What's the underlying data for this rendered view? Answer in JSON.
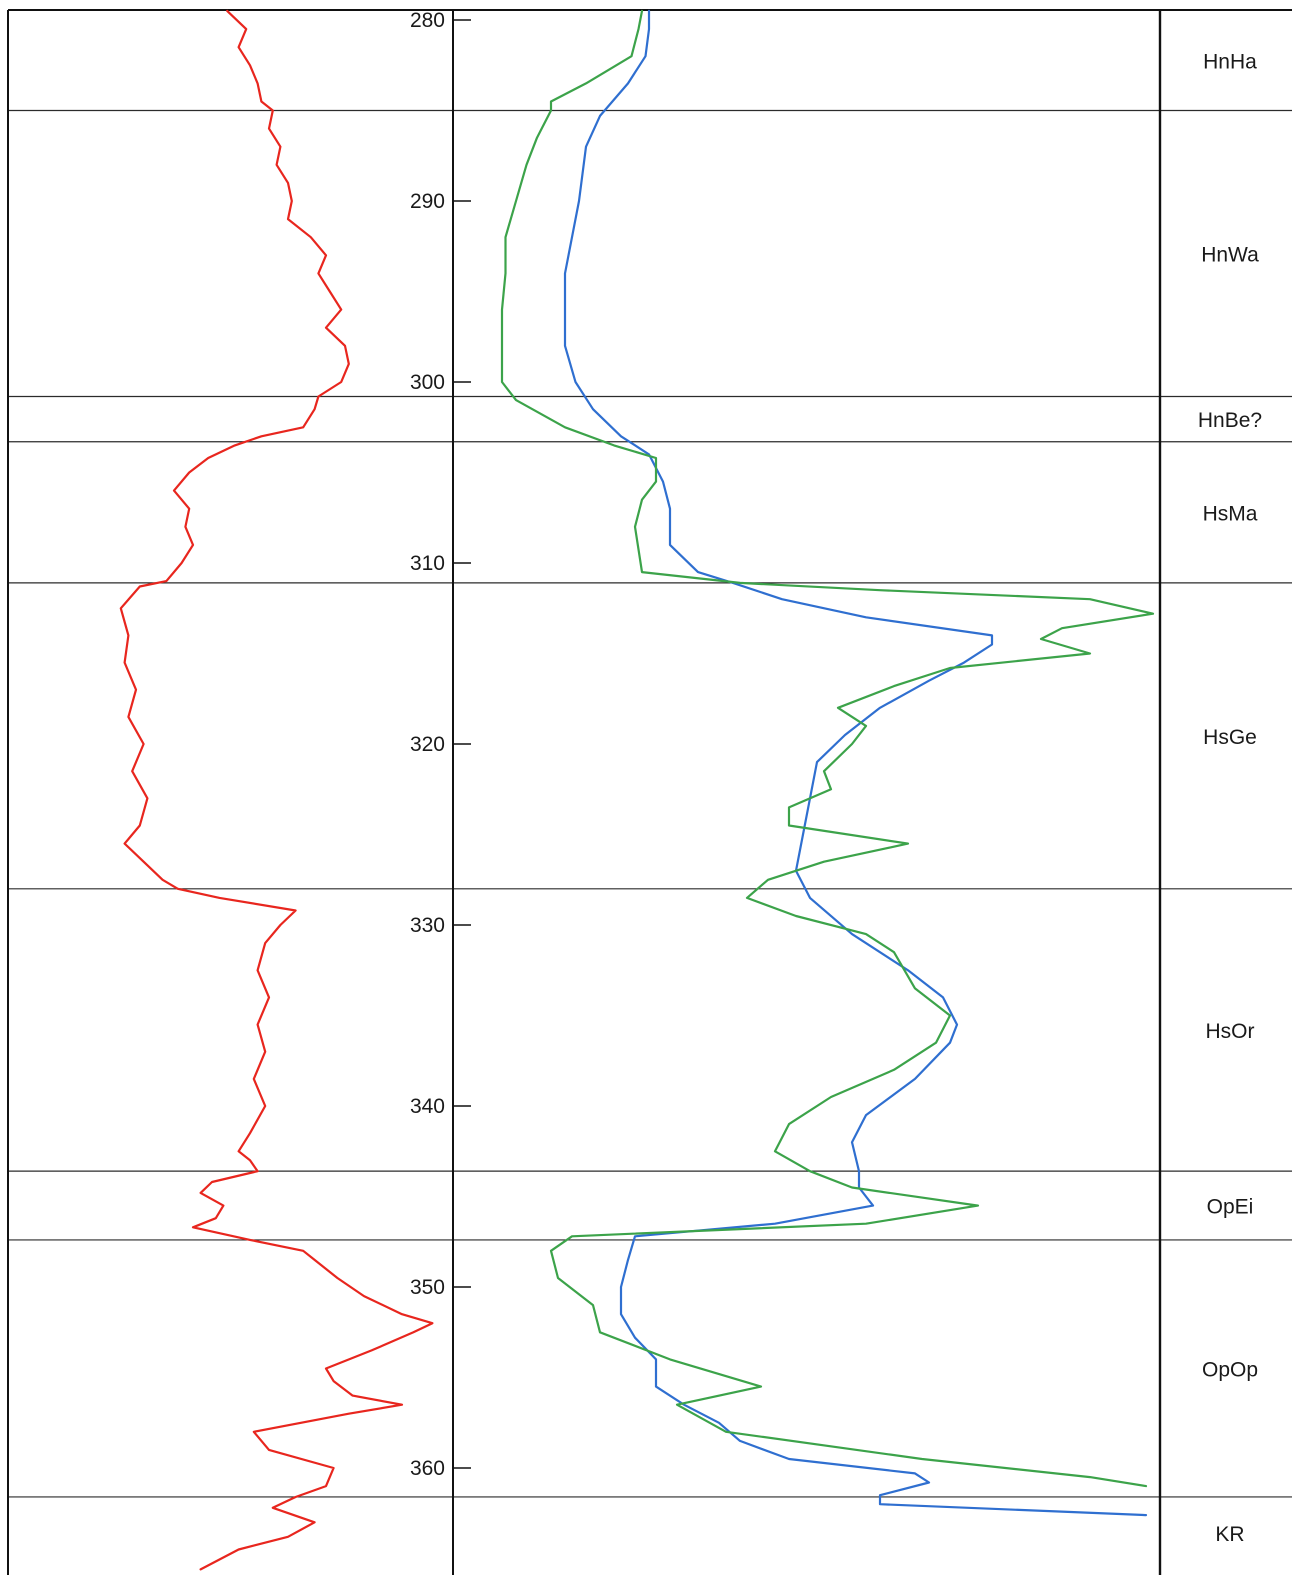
{
  "chart_data": {
    "type": "line",
    "y_axis": {
      "ticks": [
        280,
        290,
        300,
        310,
        320,
        330,
        340,
        350,
        360
      ],
      "range": [
        279.5,
        365.6
      ],
      "inverted": true
    },
    "formation_boundaries": [
      285.0,
      300.8,
      303.3,
      311.1,
      328.0,
      343.6,
      347.4,
      361.6
    ],
    "formation_units": [
      {
        "label": "HnHa",
        "top": 279.5,
        "base": 285.0
      },
      {
        "label": "HnWa",
        "top": 285.0,
        "base": 300.8
      },
      {
        "label": "HnBe?",
        "top": 300.8,
        "base": 303.3
      },
      {
        "label": "HsMa",
        "top": 303.3,
        "base": 311.1
      },
      {
        "label": "HsGe",
        "top": 311.1,
        "base": 328.0
      },
      {
        "label": "HsOr",
        "top": 328.0,
        "base": 343.6
      },
      {
        "label": "OpEi",
        "top": 343.6,
        "base": 347.4
      },
      {
        "label": "OpOp",
        "top": 347.4,
        "base": 361.6
      },
      {
        "label": "KR",
        "top": 361.6,
        "base": 365.6
      }
    ],
    "grid": false,
    "series": [
      {
        "color": "#e8261e",
        "track": "left",
        "points": [
          [
            279.5,
            0.44
          ],
          [
            280.5,
            0.49
          ],
          [
            281.5,
            0.47
          ],
          [
            282.5,
            0.5
          ],
          [
            283.5,
            0.52
          ],
          [
            284.5,
            0.53
          ],
          [
            285.0,
            0.56
          ],
          [
            286.0,
            0.55
          ],
          [
            287.0,
            0.58
          ],
          [
            288.0,
            0.57
          ],
          [
            289.0,
            0.6
          ],
          [
            290.0,
            0.61
          ],
          [
            291.0,
            0.6
          ],
          [
            292.0,
            0.66
          ],
          [
            293.0,
            0.7
          ],
          [
            294.0,
            0.68
          ],
          [
            295.0,
            0.71
          ],
          [
            296.0,
            0.74
          ],
          [
            297.0,
            0.7
          ],
          [
            298.0,
            0.75
          ],
          [
            299.0,
            0.76
          ],
          [
            300.0,
            0.74
          ],
          [
            300.8,
            0.68
          ],
          [
            301.5,
            0.67
          ],
          [
            302.5,
            0.64
          ],
          [
            303.0,
            0.53
          ],
          [
            303.5,
            0.46
          ],
          [
            304.2,
            0.39
          ],
          [
            305.0,
            0.34
          ],
          [
            306.0,
            0.3
          ],
          [
            307.0,
            0.34
          ],
          [
            308.0,
            0.33
          ],
          [
            309.0,
            0.35
          ],
          [
            310.0,
            0.32
          ],
          [
            311.0,
            0.28
          ],
          [
            311.3,
            0.21
          ],
          [
            312.5,
            0.16
          ],
          [
            314.0,
            0.18
          ],
          [
            315.5,
            0.17
          ],
          [
            317.0,
            0.2
          ],
          [
            318.5,
            0.18
          ],
          [
            320.0,
            0.22
          ],
          [
            321.5,
            0.19
          ],
          [
            323.0,
            0.23
          ],
          [
            324.5,
            0.21
          ],
          [
            325.5,
            0.17
          ],
          [
            326.5,
            0.22
          ],
          [
            327.5,
            0.27
          ],
          [
            328.0,
            0.31
          ],
          [
            328.5,
            0.42
          ],
          [
            329.2,
            0.62
          ],
          [
            330.0,
            0.58
          ],
          [
            331.0,
            0.54
          ],
          [
            332.5,
            0.52
          ],
          [
            334.0,
            0.55
          ],
          [
            335.5,
            0.52
          ],
          [
            337.0,
            0.54
          ],
          [
            338.5,
            0.51
          ],
          [
            340.0,
            0.54
          ],
          [
            341.5,
            0.5
          ],
          [
            342.5,
            0.47
          ],
          [
            343.0,
            0.5
          ],
          [
            343.6,
            0.52
          ],
          [
            344.2,
            0.4
          ],
          [
            344.8,
            0.37
          ],
          [
            345.5,
            0.43
          ],
          [
            346.2,
            0.41
          ],
          [
            346.7,
            0.35
          ],
          [
            347.4,
            0.5
          ],
          [
            348.0,
            0.64
          ],
          [
            348.5,
            0.67
          ],
          [
            349.5,
            0.73
          ],
          [
            350.5,
            0.8
          ],
          [
            351.5,
            0.9
          ],
          [
            352.0,
            0.98
          ],
          [
            352.5,
            0.93
          ],
          [
            353.5,
            0.82
          ],
          [
            354.5,
            0.7
          ],
          [
            355.2,
            0.72
          ],
          [
            356.0,
            0.77
          ],
          [
            356.5,
            0.9
          ],
          [
            357.0,
            0.76
          ],
          [
            358.0,
            0.51
          ],
          [
            359.0,
            0.55
          ],
          [
            360.0,
            0.72
          ],
          [
            361.0,
            0.7
          ],
          [
            361.6,
            0.62
          ],
          [
            362.2,
            0.56
          ],
          [
            363.0,
            0.67
          ],
          [
            363.8,
            0.6
          ],
          [
            364.5,
            0.47
          ],
          [
            365.6,
            0.37
          ]
        ]
      },
      {
        "color": "#2f6fd0",
        "track": "right",
        "points": [
          [
            279.5,
            0.27
          ],
          [
            280.5,
            0.27
          ],
          [
            282.0,
            0.265
          ],
          [
            283.5,
            0.24
          ],
          [
            285.3,
            0.2
          ],
          [
            287.0,
            0.18
          ],
          [
            290.0,
            0.17
          ],
          [
            292.0,
            0.16
          ],
          [
            294.0,
            0.15
          ],
          [
            296.0,
            0.15
          ],
          [
            298.0,
            0.15
          ],
          [
            300.0,
            0.165
          ],
          [
            301.5,
            0.19
          ],
          [
            303.0,
            0.23
          ],
          [
            304.0,
            0.27
          ],
          [
            305.5,
            0.29
          ],
          [
            307.0,
            0.3
          ],
          [
            309.0,
            0.3
          ],
          [
            310.5,
            0.34
          ],
          [
            311.1,
            0.39
          ],
          [
            312.0,
            0.46
          ],
          [
            313.0,
            0.58
          ],
          [
            314.0,
            0.76
          ],
          [
            314.5,
            0.76
          ],
          [
            315.5,
            0.72
          ],
          [
            316.5,
            0.67
          ],
          [
            318.0,
            0.6
          ],
          [
            319.5,
            0.55
          ],
          [
            321.0,
            0.51
          ],
          [
            323.0,
            0.5
          ],
          [
            325.0,
            0.49
          ],
          [
            327.0,
            0.48
          ],
          [
            328.5,
            0.5
          ],
          [
            330.5,
            0.56
          ],
          [
            332.5,
            0.64
          ],
          [
            334.0,
            0.69
          ],
          [
            335.5,
            0.71
          ],
          [
            336.5,
            0.7
          ],
          [
            338.5,
            0.65
          ],
          [
            340.5,
            0.58
          ],
          [
            342.0,
            0.56
          ],
          [
            343.6,
            0.57
          ],
          [
            344.5,
            0.57
          ],
          [
            345.5,
            0.59
          ],
          [
            346.5,
            0.45
          ],
          [
            347.2,
            0.25
          ],
          [
            348.5,
            0.24
          ],
          [
            350.0,
            0.23
          ],
          [
            351.5,
            0.23
          ],
          [
            352.8,
            0.25
          ],
          [
            354.0,
            0.28
          ],
          [
            355.5,
            0.28
          ],
          [
            356.5,
            0.32
          ],
          [
            357.5,
            0.37
          ],
          [
            358.5,
            0.4
          ],
          [
            359.5,
            0.47
          ],
          [
            360.3,
            0.65
          ],
          [
            360.8,
            0.67
          ],
          [
            361.5,
            0.6
          ],
          [
            362.0,
            0.6
          ],
          [
            362.6,
            0.98
          ]
        ]
      },
      {
        "color": "#3ca34a",
        "track": "right",
        "points": [
          [
            279.5,
            0.26
          ],
          [
            280.5,
            0.255
          ],
          [
            282.0,
            0.245
          ],
          [
            283.5,
            0.18
          ],
          [
            284.5,
            0.13
          ],
          [
            285.0,
            0.13
          ],
          [
            286.5,
            0.11
          ],
          [
            288.0,
            0.095
          ],
          [
            290.0,
            0.08
          ],
          [
            292.0,
            0.065
          ],
          [
            294.0,
            0.065
          ],
          [
            296.0,
            0.06
          ],
          [
            298.0,
            0.06
          ],
          [
            300.0,
            0.06
          ],
          [
            301.0,
            0.08
          ],
          [
            302.5,
            0.15
          ],
          [
            303.5,
            0.22
          ],
          [
            304.2,
            0.28
          ],
          [
            305.5,
            0.28
          ],
          [
            306.5,
            0.26
          ],
          [
            308.0,
            0.25
          ],
          [
            310.5,
            0.26
          ],
          [
            311.1,
            0.4
          ],
          [
            311.5,
            0.6
          ],
          [
            312.0,
            0.9
          ],
          [
            312.8,
            0.99
          ],
          [
            313.6,
            0.86
          ],
          [
            314.2,
            0.83
          ],
          [
            315.0,
            0.9
          ],
          [
            315.8,
            0.7
          ],
          [
            316.8,
            0.62
          ],
          [
            318.0,
            0.54
          ],
          [
            319.0,
            0.58
          ],
          [
            320.0,
            0.56
          ],
          [
            321.5,
            0.52
          ],
          [
            322.5,
            0.53
          ],
          [
            323.5,
            0.47
          ],
          [
            324.5,
            0.47
          ],
          [
            325.5,
            0.64
          ],
          [
            326.5,
            0.52
          ],
          [
            327.5,
            0.44
          ],
          [
            328.5,
            0.41
          ],
          [
            329.5,
            0.48
          ],
          [
            330.5,
            0.58
          ],
          [
            331.5,
            0.62
          ],
          [
            333.5,
            0.65
          ],
          [
            335.0,
            0.7
          ],
          [
            336.5,
            0.68
          ],
          [
            338.0,
            0.62
          ],
          [
            339.5,
            0.53
          ],
          [
            341.0,
            0.47
          ],
          [
            342.5,
            0.45
          ],
          [
            343.6,
            0.5
          ],
          [
            344.5,
            0.56
          ],
          [
            345.5,
            0.74
          ],
          [
            346.5,
            0.58
          ],
          [
            347.2,
            0.16
          ],
          [
            348.0,
            0.13
          ],
          [
            349.5,
            0.14
          ],
          [
            351.0,
            0.19
          ],
          [
            352.5,
            0.2
          ],
          [
            354.0,
            0.3
          ],
          [
            355.5,
            0.43
          ],
          [
            356.5,
            0.31
          ],
          [
            358.0,
            0.38
          ],
          [
            359.5,
            0.66
          ],
          [
            360.5,
            0.9
          ],
          [
            361.0,
            0.98
          ]
        ]
      }
    ],
    "labels": {
      "depth_ticks": [
        "280",
        "290",
        "300",
        "310",
        "320",
        "330",
        "340",
        "350",
        "360"
      ]
    }
  }
}
